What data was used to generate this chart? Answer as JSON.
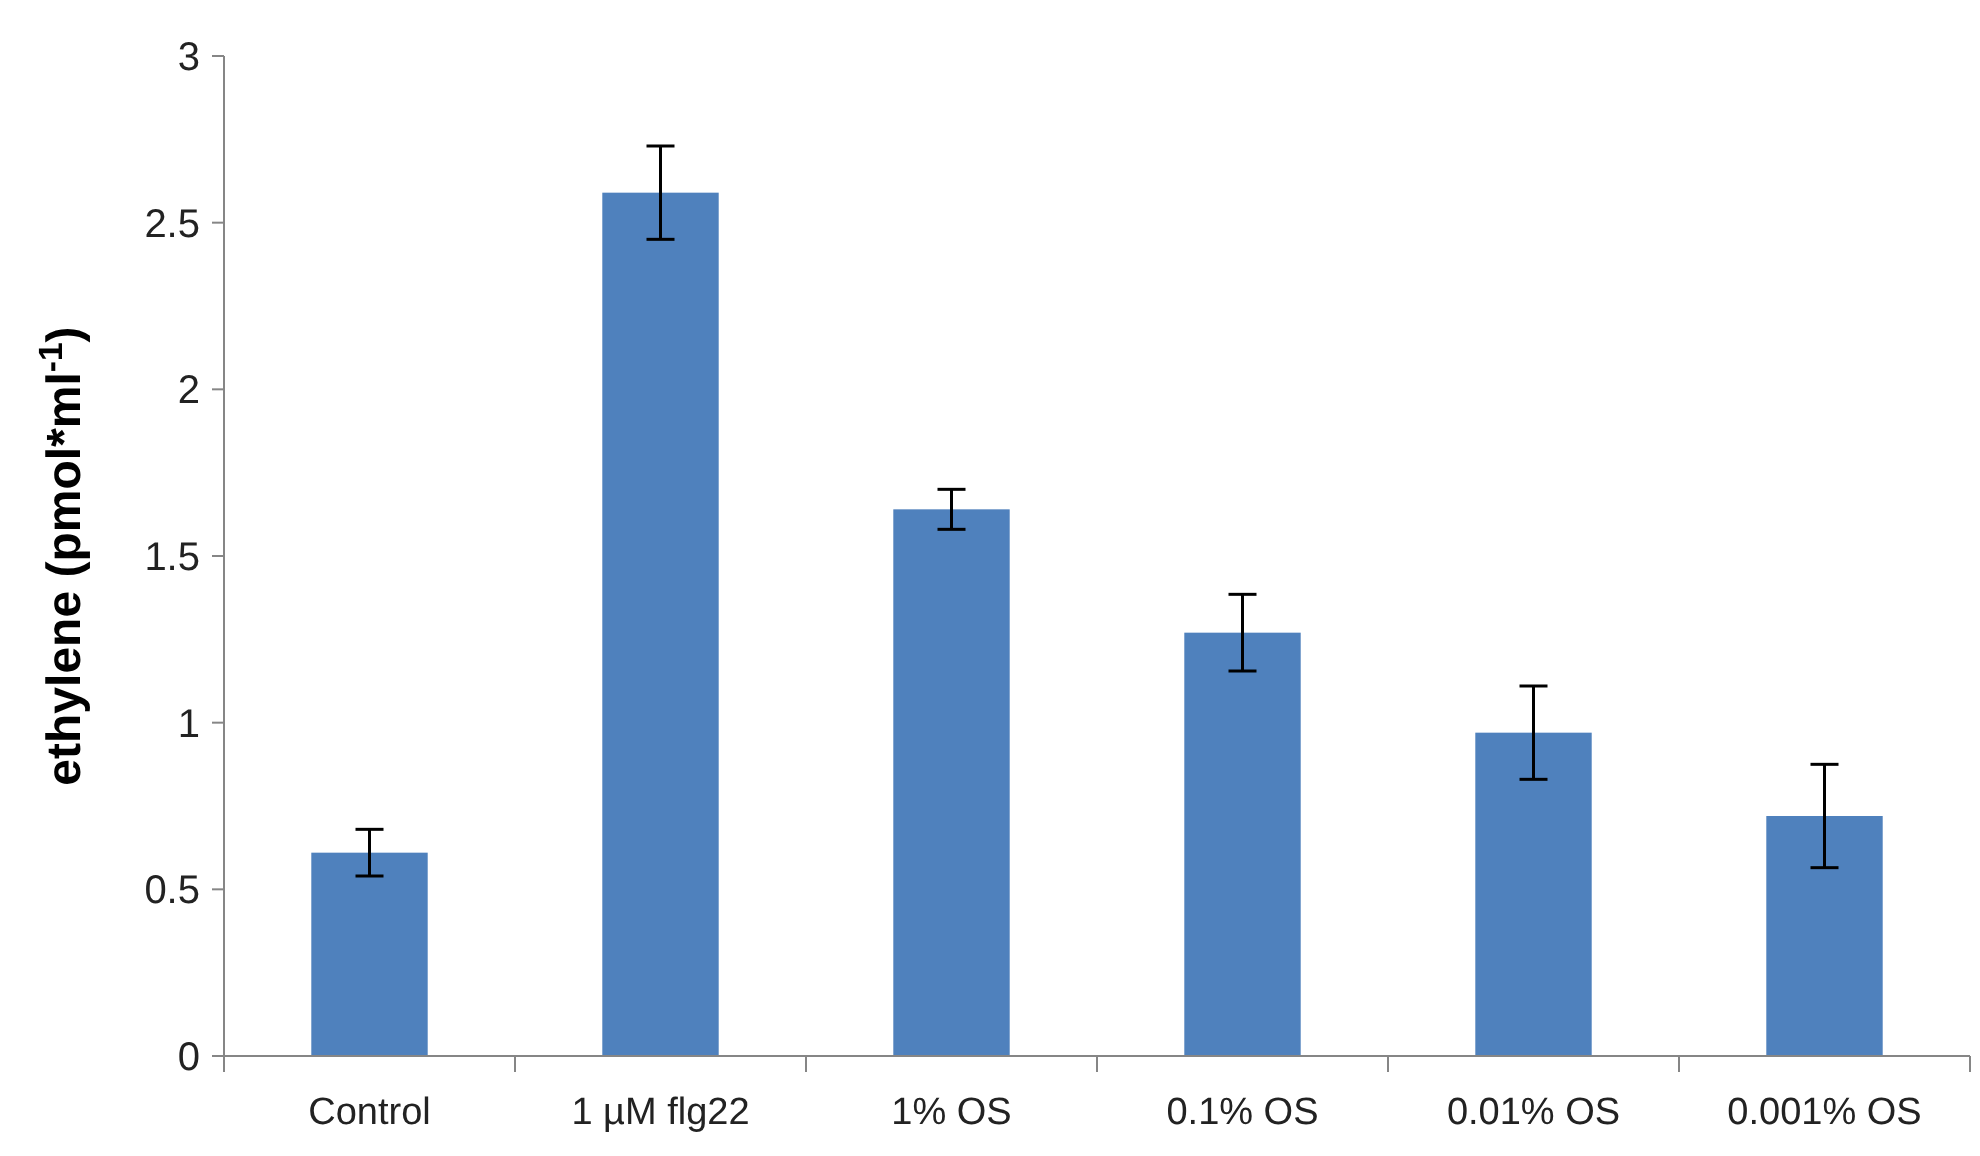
{
  "chart_data": {
    "type": "bar",
    "ylabel": "ethylene (pmol*ml$^{-1}$)",
    "categories": [
      "Control",
      "1 µM flg22",
      "1% OS",
      "0.1% OS",
      "0.01% OS",
      "0.001% OS"
    ],
    "values": [
      0.61,
      2.59,
      1.64,
      1.27,
      0.97,
      0.72
    ],
    "errors": [
      0.07,
      0.14,
      0.06,
      0.115,
      0.14,
      0.155
    ],
    "color": "#4f81bd",
    "ylim": [
      0,
      3
    ],
    "yticks": [
      0,
      0.5,
      1,
      1.5,
      2,
      2.5,
      3
    ],
    "grid": false
  }
}
